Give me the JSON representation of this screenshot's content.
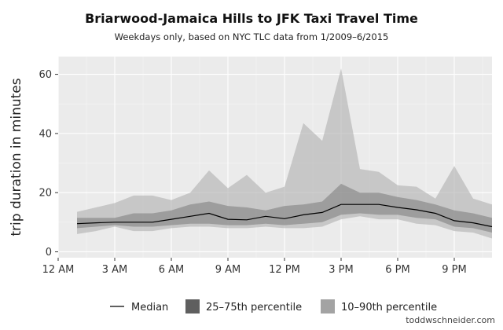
{
  "chart_data": {
    "type": "area",
    "title": "Briarwood-Jamaica Hills to JFK Taxi Travel Time",
    "subtitle": "Weekdays only, based on NYC TLC data from 1/2009–6/2015",
    "xlabel": "",
    "ylabel": "trip duration in minutes",
    "x_tick_labels": [
      "12 AM",
      "3 AM",
      "6 AM",
      "9 AM",
      "12 PM",
      "3 PM",
      "6 PM",
      "9 PM"
    ],
    "x_ticks": [
      0,
      3,
      6,
      9,
      12,
      15,
      18,
      21
    ],
    "y_ticks": [
      0,
      20,
      40,
      60
    ],
    "xlim": [
      0,
      23
    ],
    "ylim": [
      -2,
      66
    ],
    "grid": true,
    "legend_position": "bottom",
    "legend": [
      "Median",
      "25–75th percentile",
      "10–90th percentile"
    ],
    "colors": {
      "panel": "#ebebeb",
      "grid": "#ffffff",
      "p10_90": "#c8c8c8",
      "p25_75": "#9a9a9a",
      "median": "#000000"
    },
    "x": [
      1,
      2,
      3,
      4,
      5,
      6,
      7,
      8,
      9,
      10,
      11,
      12,
      13,
      14,
      15,
      16,
      17,
      18,
      19,
      20,
      21,
      22,
      23
    ],
    "series": [
      {
        "name": "Median",
        "values": [
          9.5,
          9.8,
          10,
          10,
          10,
          11,
          12,
          13,
          11,
          10.8,
          12,
          11.2,
          12.5,
          13.3,
          16,
          16,
          16,
          15,
          14.2,
          13,
          10.5,
          9.8,
          8.5
        ]
      },
      {
        "name": "25–75th percentile",
        "low": [
          8,
          8.5,
          9,
          8.5,
          8.5,
          9,
          9.5,
          9.5,
          9,
          9,
          9.5,
          9,
          9.5,
          10,
          12.5,
          13,
          12.5,
          12.5,
          11.5,
          11,
          8.5,
          8,
          6.5
        ],
        "high": [
          11.5,
          11.5,
          11.5,
          13,
          13,
          14,
          16,
          17,
          15.5,
          15,
          14,
          15.5,
          16,
          17,
          23,
          20,
          20,
          18.5,
          17.5,
          16,
          14,
          13,
          11.5
        ]
      },
      {
        "name": "10–90th percentile",
        "low": [
          6,
          7,
          8.5,
          7,
          7,
          8,
          8.5,
          8.5,
          8,
          8,
          8.5,
          8,
          8,
          8.5,
          11,
          12,
          11,
          11,
          9.5,
          9,
          7,
          6.5,
          4.5
        ],
        "high": [
          13.5,
          15,
          16.5,
          19,
          19,
          17.5,
          20,
          27.5,
          21.5,
          26,
          20,
          22,
          43.5,
          37.5,
          62,
          28,
          27,
          22.5,
          22,
          18,
          29,
          18,
          16
        ]
      }
    ]
  },
  "credit": "toddwschneider.com"
}
